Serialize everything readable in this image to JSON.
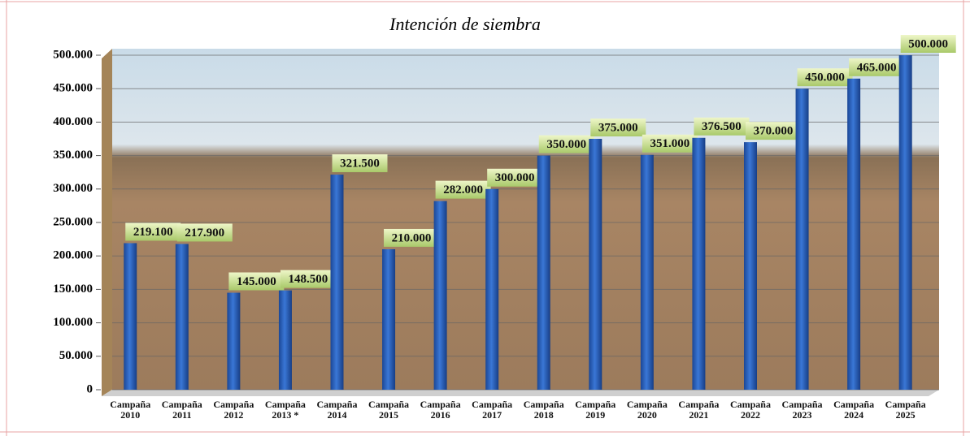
{
  "chart_data": {
    "type": "bar",
    "title": "Intención de siembra",
    "categories": [
      "Campaña 2010",
      "Campaña 2011",
      "Campaña 2012",
      "Campaña 2013 *",
      "Campaña 2014",
      "Campaña 2015",
      "Campaña 2016",
      "Campaña 2017",
      "Campaña 2018",
      "Campaña 2019",
      "Campaña 2020",
      "Campaña 2021",
      "Campaña 2022",
      "Campaña 2023",
      "Campaña 2024",
      "Campaña 2025"
    ],
    "values": [
      219100,
      217900,
      145000,
      148500,
      321500,
      210000,
      282000,
      300000,
      350000,
      375000,
      351000,
      376500,
      370000,
      450000,
      465000,
      500000
    ],
    "value_labels": [
      "219.100",
      "217.900",
      "145.000",
      "148.500",
      "321.500",
      "210.000",
      "282.000",
      "300.000",
      "350.000",
      "375.000",
      "351.000",
      "376.500",
      "370.000",
      "450.000",
      "465.000",
      "500.000"
    ],
    "color": "#2358b8",
    "ylim": [
      0,
      500000
    ],
    "yticks": [
      0,
      {
        "value": 50000,
        "label": "50.000"
      },
      {
        "value": 100000,
        "label": "100.000"
      },
      {
        "value": 150000,
        "label": "150.000"
      },
      {
        "value": 200000,
        "label": "200.000"
      },
      {
        "value": 250000,
        "label": "250.000"
      },
      {
        "value": 300000,
        "label": "300.000"
      },
      {
        "value": 350000,
        "label": "350.000"
      },
      {
        "value": 400000,
        "label": "400.000"
      },
      {
        "value": 450000,
        "label": "450.000"
      },
      {
        "value": 500000,
        "label": "500.000"
      }
    ],
    "grid": true
  }
}
